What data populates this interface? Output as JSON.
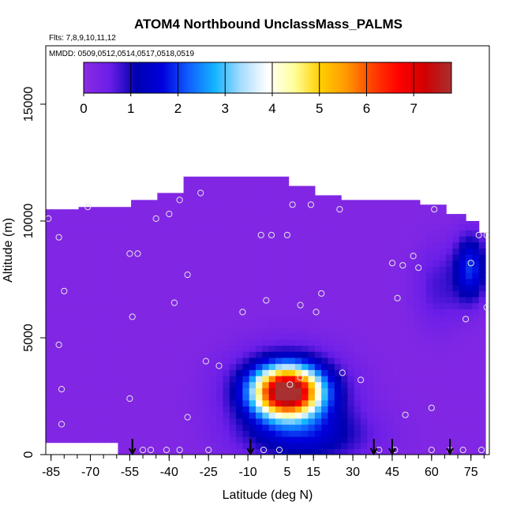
{
  "chart_data": {
    "type": "heatmap",
    "title": "ATOM4 Northbound UnclassMass_PALMS",
    "flights_note": "Flts: 7,8,9,10,11,12",
    "dates_note": "MMDD: 0509,0512,0514,0517,0518,0519",
    "xlabel": "Latitude (deg N)",
    "ylabel": "Altitude (m)",
    "xlim": [
      -87,
      82
    ],
    "ylim": [
      0,
      17500
    ],
    "x_ticks": [
      -85,
      -70,
      -55,
      -40,
      -25,
      -10,
      5,
      15,
      30,
      45,
      60,
      75
    ],
    "x_ticks_minor": [
      -85,
      -80,
      -75,
      -70,
      -65,
      -60,
      -55,
      -50,
      -45,
      -40,
      -35,
      -30,
      -25,
      -20,
      -15,
      -10,
      -5,
      0,
      5,
      10,
      15,
      20,
      25,
      30,
      35,
      40,
      45,
      50,
      55,
      60,
      65,
      70,
      75,
      80
    ],
    "y_ticks": [
      0,
      5000,
      10000,
      15000
    ],
    "colorbar": {
      "min": 0,
      "max": 7.8,
      "ticks": [
        0,
        1,
        2,
        3,
        4,
        5,
        6,
        7
      ],
      "colors": [
        "#8a2be2",
        "#6a1ee8",
        "#0000b0",
        "#0000dd",
        "#1060ff",
        "#14b4ff",
        "#a8dcff",
        "#ffffff",
        "#ffff9c",
        "#ffd000",
        "#ff9800",
        "#ff4000",
        "#ff0000",
        "#d00000",
        "#a83030"
      ]
    },
    "base_value": 0.15,
    "envelope": [
      [
        -86,
        0,
        10500
      ],
      [
        -84,
        0,
        10500
      ],
      [
        -80,
        0,
        10500
      ],
      [
        -75,
        0,
        10600
      ],
      [
        -65,
        0,
        10600
      ],
      [
        -55,
        0,
        10900
      ],
      [
        -45,
        0,
        11200
      ],
      [
        -35,
        0,
        11900
      ],
      [
        -22,
        0,
        11900
      ],
      [
        -15,
        0,
        11900
      ],
      [
        -5,
        0,
        11900
      ],
      [
        5,
        0,
        11500
      ],
      [
        15,
        0,
        11100
      ],
      [
        25,
        0,
        10900
      ],
      [
        35,
        0,
        10900
      ],
      [
        45,
        0,
        10900
      ],
      [
        55,
        0,
        10700
      ],
      [
        65,
        0,
        10300
      ],
      [
        72,
        0,
        10000
      ],
      [
        78,
        0,
        9500
      ],
      [
        81,
        0,
        9500
      ]
    ],
    "envelope_gaps": [
      [
        -86,
        -60,
        0,
        450
      ]
    ],
    "features": [
      {
        "name": "plume",
        "lat": 5,
        "alt": 2700,
        "lat_width": 12,
        "alt_width": 1000,
        "peak": 7.3
      },
      {
        "name": "plume-halo",
        "lat": 5,
        "alt": 2800,
        "lat_width": 22,
        "alt_width": 1700,
        "peak": 1.4
      },
      {
        "name": "plume-base",
        "lat": 12,
        "alt": 800,
        "lat_width": 24,
        "alt_width": 1200,
        "peak": 1.2
      },
      {
        "name": "arctic-upper",
        "lat": 75,
        "alt": 8000,
        "lat_width": 6,
        "alt_width": 1400,
        "peak": 1.7
      },
      {
        "name": "arctic-band",
        "lat": 63,
        "alt": 7200,
        "lat_width": 10,
        "alt_width": 1800,
        "peak": 0.6
      }
    ],
    "obs_points": [
      [
        -86,
        10100
      ],
      [
        -82,
        9300
      ],
      [
        -80,
        7000
      ],
      [
        -82,
        4700
      ],
      [
        -81,
        2800
      ],
      [
        -81,
        1300
      ],
      [
        -71,
        10600
      ],
      [
        -55,
        8600
      ],
      [
        -52,
        8600
      ],
      [
        -54,
        5900
      ],
      [
        -55,
        2400
      ],
      [
        -50,
        200
      ],
      [
        -45,
        10100
      ],
      [
        -40,
        10300
      ],
      [
        -36,
        10900
      ],
      [
        -38,
        6500
      ],
      [
        -33,
        7700
      ],
      [
        -28,
        11200
      ],
      [
        -26,
        4000
      ],
      [
        -21,
        3800
      ],
      [
        -12,
        6100
      ],
      [
        -5,
        9400
      ],
      [
        -1,
        9400
      ],
      [
        -3,
        6600
      ],
      [
        5,
        9400
      ],
      [
        7,
        10700
      ],
      [
        10,
        6400
      ],
      [
        16,
        6100
      ],
      [
        18,
        6900
      ],
      [
        14,
        10700
      ],
      [
        25,
        10500
      ],
      [
        26,
        3500
      ],
      [
        33,
        3200
      ],
      [
        6,
        3000
      ],
      [
        10,
        3300
      ],
      [
        -33,
        1600
      ],
      [
        -47,
        200
      ],
      [
        -41,
        200
      ],
      [
        -36,
        200
      ],
      [
        -25,
        200
      ],
      [
        -4,
        200
      ],
      [
        2,
        200
      ],
      [
        45,
        8200
      ],
      [
        49,
        8100
      ],
      [
        53,
        8500
      ],
      [
        55,
        8000
      ],
      [
        47,
        6700
      ],
      [
        60,
        2000
      ],
      [
        50,
        1700
      ],
      [
        61,
        10500
      ],
      [
        75,
        8200
      ],
      [
        73,
        5800
      ],
      [
        78,
        9400
      ],
      [
        81,
        9400
      ],
      [
        81,
        6300
      ],
      [
        79,
        200
      ],
      [
        72,
        200
      ],
      [
        67,
        200
      ],
      [
        60,
        200
      ],
      [
        46,
        200
      ],
      [
        40,
        200
      ]
    ],
    "arrows": [
      -54,
      -9,
      38,
      45,
      67
    ]
  }
}
